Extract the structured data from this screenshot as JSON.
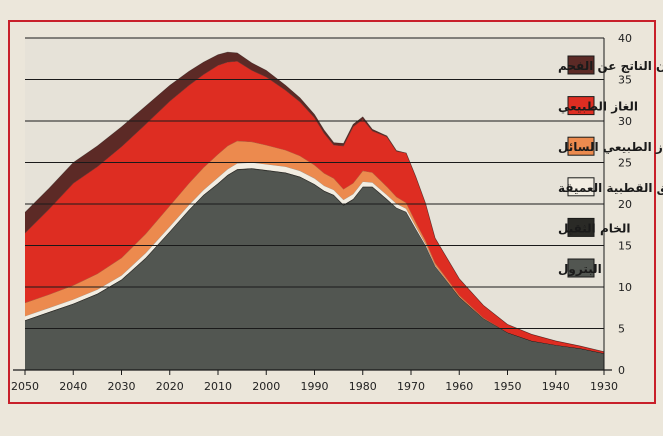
{
  "chart_data": {
    "type": "area",
    "stacked": true,
    "x_axis_reversed": true,
    "xlim": [
      1930,
      2050
    ],
    "ylim": [
      0,
      40
    ],
    "x_ticks": [
      2050,
      2040,
      2030,
      2020,
      2010,
      2000,
      1990,
      1980,
      1970,
      1960,
      1950,
      1940,
      1930
    ],
    "y_ticks": [
      0,
      5,
      10,
      15,
      20,
      25,
      30,
      35,
      40
    ],
    "y_axis_position": "right",
    "grid": "horizontal",
    "legend_position": "top-right",
    "x": [
      1930,
      1935,
      1940,
      1945,
      1950,
      1955,
      1960,
      1965,
      1967,
      1969,
      1971,
      1973,
      1975,
      1978,
      1980,
      1982,
      1984,
      1986,
      1988,
      1990,
      1993,
      1996,
      2000,
      2003,
      2006,
      2008,
      2010,
      2013,
      2016,
      2020,
      2025,
      2030,
      2035,
      2040,
      2045,
      2050
    ],
    "series": [
      {
        "name": "البترول",
        "color": "#525651",
        "values": [
          2,
          2.6,
          3,
          3.5,
          4.5,
          6.2,
          8.8,
          12.5,
          15,
          17,
          19,
          19.5,
          20.5,
          22,
          22,
          20.5,
          19.8,
          21,
          21.5,
          22.3,
          23.2,
          23.7,
          24,
          24.2,
          24.1,
          23.4,
          22.4,
          21,
          19.2,
          16.6,
          13.4,
          10.8,
          9.1,
          7.9,
          6.9,
          5.9
        ]
      },
      {
        "name": "الخام الثقيل",
        "color": "#2a2a26",
        "values": [
          0,
          0,
          0,
          0,
          0,
          0,
          0,
          0,
          0,
          0,
          0.05,
          0.05,
          0.1,
          0.1,
          0.1,
          0.1,
          0.1,
          0.1,
          0.1,
          0.1,
          0.1,
          0.1,
          0.1,
          0.1,
          0.1,
          0.1,
          0.1,
          0.1,
          0.1,
          0.1,
          0.1,
          0.1,
          0.1,
          0.1,
          0.1,
          0.1
        ]
      },
      {
        "name": "المناطق القطبية العميقة",
        "color": "#f2ede2",
        "values": [
          0,
          0,
          0,
          0,
          0,
          0,
          0,
          0.1,
          0.2,
          0.3,
          0.4,
          0.5,
          0.5,
          0.5,
          0.6,
          0.6,
          0.6,
          0.6,
          0.6,
          0.7,
          0.7,
          0.7,
          0.7,
          0.7,
          0.7,
          0.7,
          0.7,
          0.6,
          0.6,
          0.6,
          0.6,
          0.5,
          0.5,
          0.5,
          0.5,
          0.5
        ]
      },
      {
        "name": "الغاز الطبيعي السائل",
        "color": "#ec8a4e",
        "values": [
          0,
          0,
          0,
          0,
          0,
          0.1,
          0.2,
          0.3,
          0.4,
          0.5,
          0.7,
          0.8,
          1,
          1.2,
          1.3,
          1.3,
          1.3,
          1.4,
          1.5,
          1.6,
          1.8,
          2,
          2.3,
          2.5,
          2.7,
          2.8,
          2.8,
          2.7,
          2.6,
          2.5,
          2.3,
          2.1,
          1.9,
          1.7,
          1.6,
          1.6
        ]
      },
      {
        "name": "الغاز الطبيعي",
        "color": "#de2d22",
        "values": [
          0.2,
          0.3,
          0.5,
          0.8,
          1,
          1.5,
          2,
          3,
          4.5,
          5.5,
          6,
          5.5,
          6,
          5,
          6.2,
          6.8,
          5.2,
          4,
          4.8,
          5.7,
          6.5,
          7.2,
          8.2,
          8.6,
          9.6,
          10.1,
          10.7,
          11.2,
          11.8,
          12.6,
          13.2,
          13.4,
          12.9,
          12.3,
          10.3,
          8.4
        ]
      },
      {
        "name": "الميثان الناتج عن الفحم",
        "color": "#5c2a26",
        "values": [
          0,
          0,
          0,
          0,
          0,
          0,
          0,
          0,
          0,
          0,
          0,
          0.1,
          0.1,
          0.2,
          0.3,
          0.3,
          0.3,
          0.3,
          0.4,
          0.4,
          0.5,
          0.6,
          0.8,
          0.9,
          1,
          1.2,
          1.3,
          1.5,
          1.7,
          1.9,
          2.2,
          2.4,
          2.5,
          2.5,
          2.5,
          2.5
        ]
      }
    ]
  }
}
